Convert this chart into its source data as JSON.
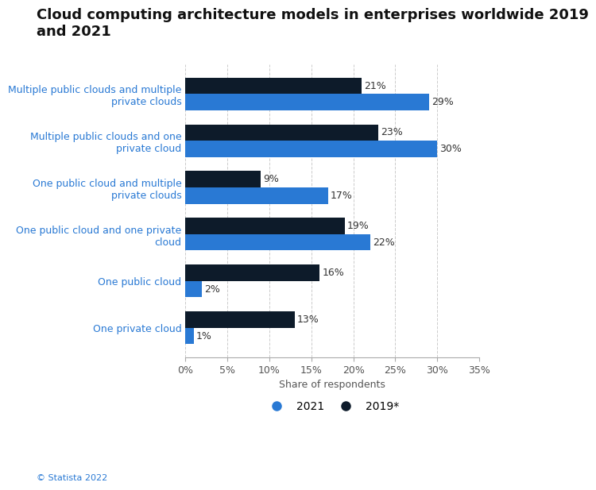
{
  "title": "Cloud computing architecture models in enterprises worldwide 2019\nand 2021",
  "categories": [
    "One private cloud",
    "One public cloud",
    "One public cloud and one private\ncloud",
    "One public cloud and multiple\nprivate clouds",
    "Multiple public clouds and one\nprivate cloud",
    "Multiple public clouds and multiple\nprivate clouds"
  ],
  "values_2019": [
    13,
    16,
    19,
    9,
    23,
    21
  ],
  "values_2021": [
    1,
    2,
    22,
    17,
    30,
    29
  ],
  "color_2019": "#0d1b2a",
  "color_2021": "#2979d4",
  "xlabel": "Share of respondents",
  "xlim": [
    0,
    35
  ],
  "xticks": [
    0,
    5,
    10,
    15,
    20,
    25,
    30,
    35
  ],
  "xtick_labels": [
    "0%",
    "5%",
    "10%",
    "15%",
    "20%",
    "25%",
    "30%",
    "35%"
  ],
  "legend_2021": "2021",
  "legend_2019": "2019*",
  "footer": "© Statista 2022",
  "bar_height": 0.35,
  "title_fontsize": 13,
  "label_fontsize": 9,
  "tick_fontsize": 9,
  "annotation_fontsize": 9,
  "background_color": "#ffffff",
  "grid_color": "#cccccc"
}
